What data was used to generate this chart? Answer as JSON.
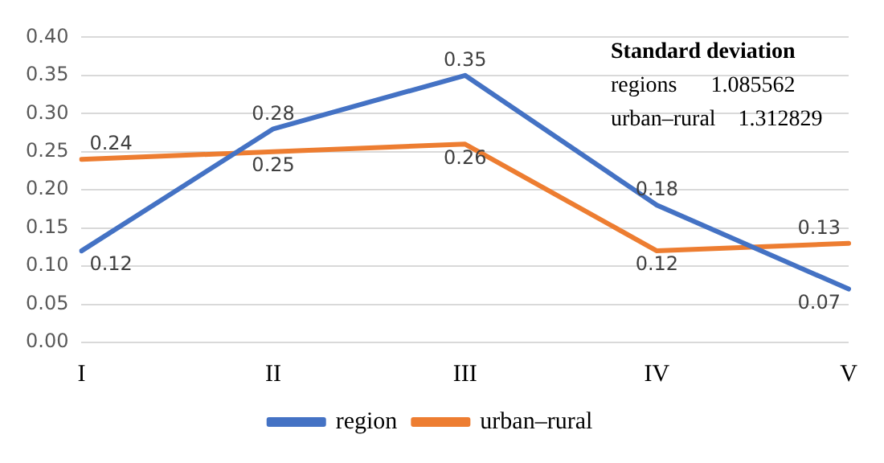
{
  "chart_data": {
    "type": "line",
    "categories": [
      "I",
      "II",
      "III",
      "IV",
      "V"
    ],
    "series": [
      {
        "name": "region",
        "color": "#4472c4",
        "values": [
          0.12,
          0.28,
          0.35,
          0.18,
          0.07
        ]
      },
      {
        "name": "urban–rural",
        "color": "#ed7d31",
        "values": [
          0.24,
          0.25,
          0.26,
          0.12,
          0.13
        ]
      }
    ],
    "ylim": [
      0,
      0.4
    ],
    "yticks": [
      {
        "value": 0,
        "label": "0.00"
      },
      0.05,
      {
        "value": 0.1,
        "label": "0.10"
      },
      0.15,
      {
        "value": 0.2,
        "label": "0.20"
      },
      0.25,
      {
        "value": 0.3,
        "label": "0.30"
      },
      0.35,
      {
        "value": 0.4,
        "label": "0.40"
      }
    ],
    "grid": "y",
    "legend": "bottom",
    "data_labels": true,
    "marker": "none",
    "line_style": "solid",
    "annotations": [
      "Standard deviation",
      "regions      1.085562",
      "urban–rural    1.312829"
    ]
  }
}
